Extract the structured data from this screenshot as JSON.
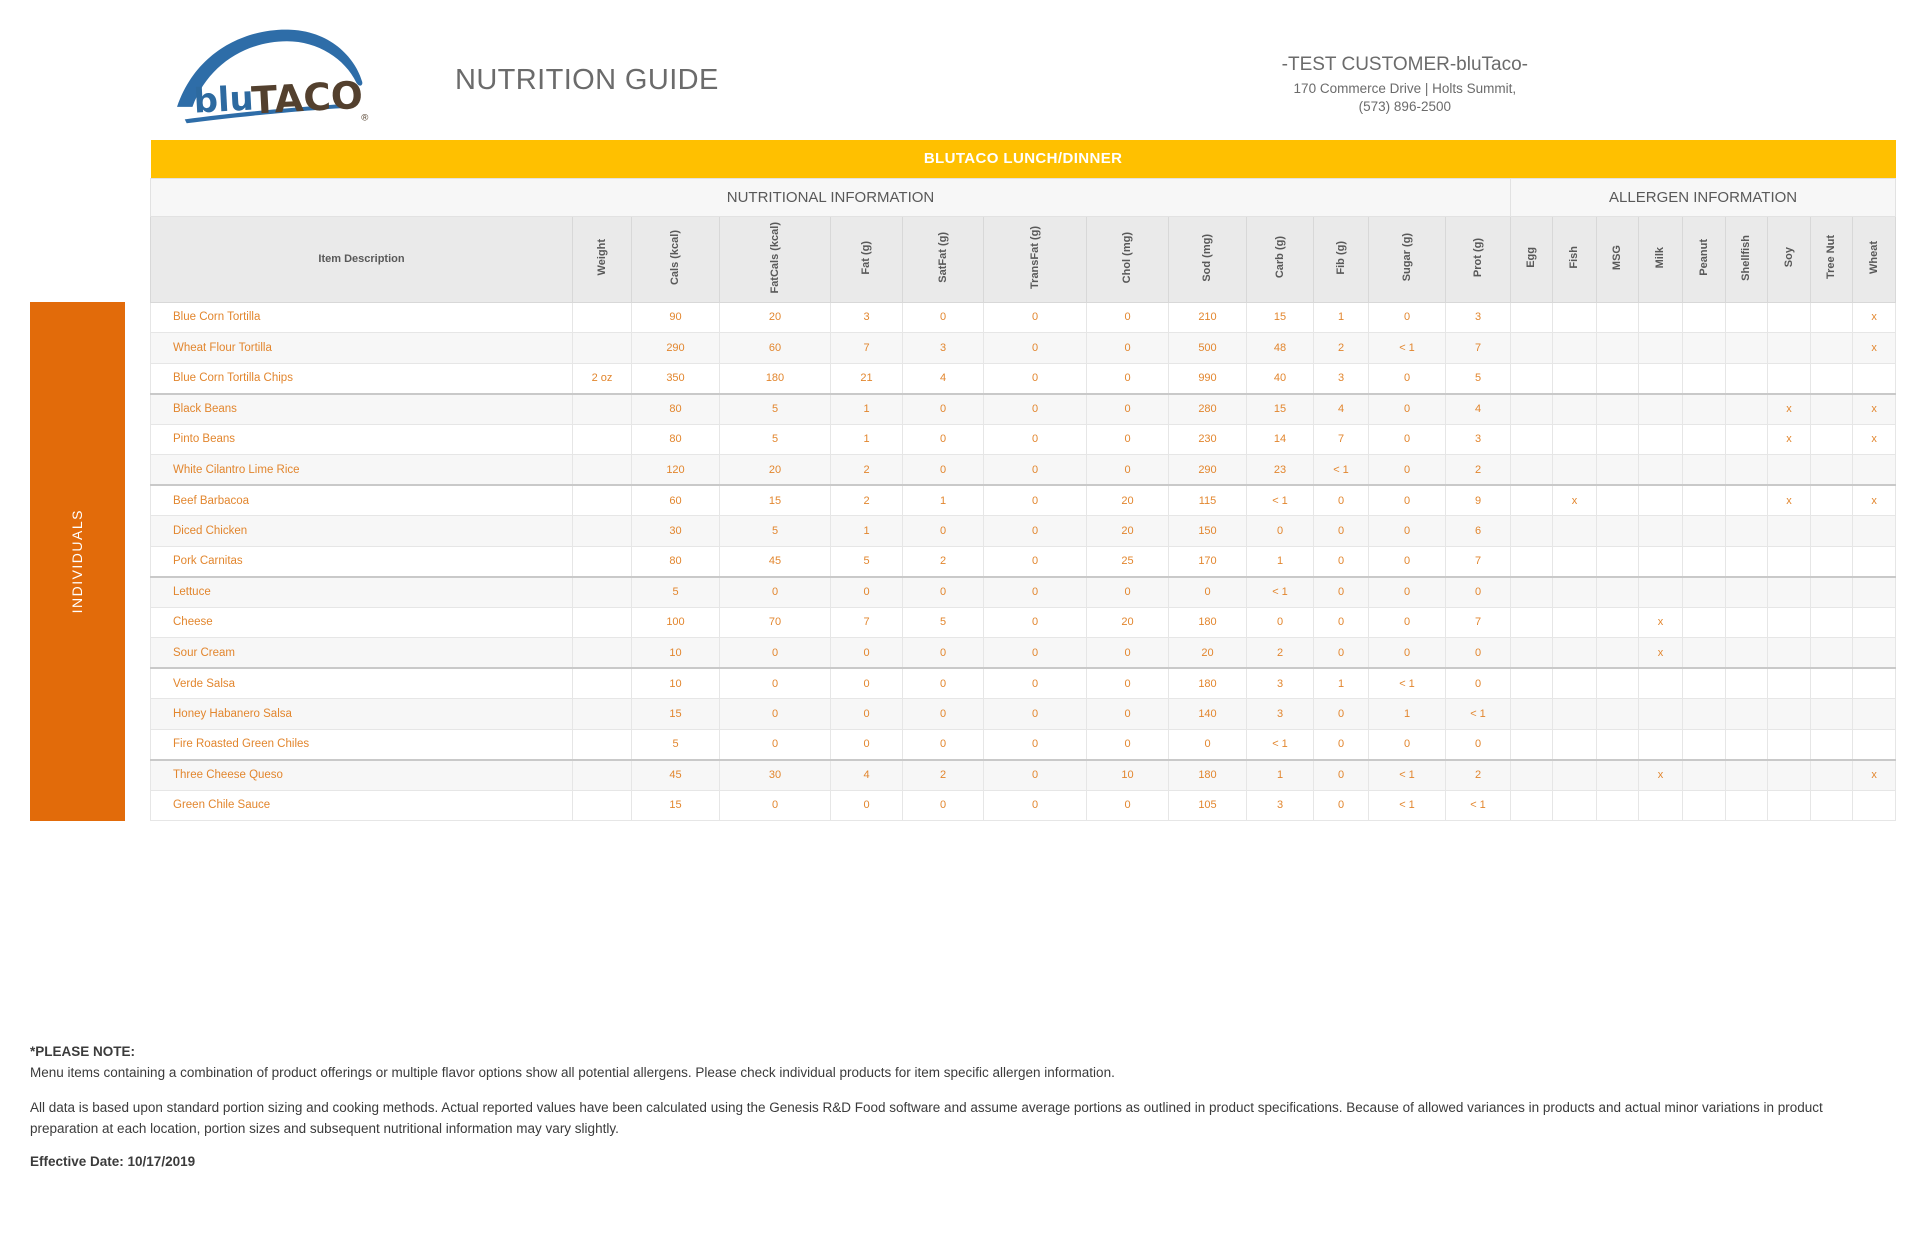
{
  "header": {
    "logo_blu": "blu",
    "logo_taco": "TACO",
    "logo_registered": "®",
    "title": "NUTRITION GUIDE",
    "customer": "-TEST CUSTOMER-bluTaco-",
    "address": "170 Commerce Drive | Holts Summit,",
    "phone": "(573) 896-2500"
  },
  "table": {
    "banner": "BLUTACO LUNCH/DINNER",
    "nutrition_section": "NUTRITIONAL INFORMATION",
    "allergen_section": "ALLERGEN INFORMATION",
    "category_label": "INDIVIDUALS",
    "columns": [
      "Item Description",
      "Weight",
      "Cals (kcal)",
      "FatCals (kcal)",
      "Fat (g)",
      "SatFat (g)",
      "TransFat (g)",
      "Chol (mg)",
      "Sod (mg)",
      "Carb (g)",
      "Fib (g)",
      "Sugar (g)",
      "Prot (g)",
      "Egg",
      "Fish",
      "MSG",
      "Milk",
      "Peanut",
      "Shellfish",
      "Soy",
      "Tree Nut",
      "Wheat"
    ],
    "rows": [
      [
        "Blue Corn Tortilla",
        "",
        "90",
        "20",
        "3",
        "0",
        "0",
        "0",
        "210",
        "15",
        "1",
        "0",
        "3",
        "",
        "",
        "",
        "",
        "",
        "",
        "",
        "",
        "x"
      ],
      [
        "Wheat Flour Tortilla",
        "",
        "290",
        "60",
        "7",
        "3",
        "0",
        "0",
        "500",
        "48",
        "2",
        "< 1",
        "7",
        "",
        "",
        "",
        "",
        "",
        "",
        "",
        "",
        "x"
      ],
      [
        "Blue Corn Tortilla Chips",
        "2 oz",
        "350",
        "180",
        "21",
        "4",
        "0",
        "0",
        "990",
        "40",
        "3",
        "0",
        "5",
        "",
        "",
        "",
        "",
        "",
        "",
        "",
        "",
        ""
      ],
      [
        "Black Beans",
        "",
        "80",
        "5",
        "1",
        "0",
        "0",
        "0",
        "280",
        "15",
        "4",
        "0",
        "4",
        "",
        "",
        "",
        "",
        "",
        "",
        "x",
        "",
        "x"
      ],
      [
        "Pinto Beans",
        "",
        "80",
        "5",
        "1",
        "0",
        "0",
        "0",
        "230",
        "14",
        "7",
        "0",
        "3",
        "",
        "",
        "",
        "",
        "",
        "",
        "x",
        "",
        "x"
      ],
      [
        "White Cilantro Lime Rice",
        "",
        "120",
        "20",
        "2",
        "0",
        "0",
        "0",
        "290",
        "23",
        "< 1",
        "0",
        "2",
        "",
        "",
        "",
        "",
        "",
        "",
        "",
        "",
        ""
      ],
      [
        "Beef Barbacoa",
        "",
        "60",
        "15",
        "2",
        "1",
        "0",
        "20",
        "115",
        "< 1",
        "0",
        "0",
        "9",
        "",
        "x",
        "",
        "",
        "",
        "",
        "x",
        "",
        "x"
      ],
      [
        "Diced Chicken",
        "",
        "30",
        "5",
        "1",
        "0",
        "0",
        "20",
        "150",
        "0",
        "0",
        "0",
        "6",
        "",
        "",
        "",
        "",
        "",
        "",
        "",
        "",
        ""
      ],
      [
        "Pork Carnitas",
        "",
        "80",
        "45",
        "5",
        "2",
        "0",
        "25",
        "170",
        "1",
        "0",
        "0",
        "7",
        "",
        "",
        "",
        "",
        "",
        "",
        "",
        "",
        ""
      ],
      [
        "Lettuce",
        "",
        "5",
        "0",
        "0",
        "0",
        "0",
        "0",
        "0",
        "< 1",
        "0",
        "0",
        "0",
        "",
        "",
        "",
        "",
        "",
        "",
        "",
        "",
        ""
      ],
      [
        "Cheese",
        "",
        "100",
        "70",
        "7",
        "5",
        "0",
        "20",
        "180",
        "0",
        "0",
        "0",
        "7",
        "",
        "",
        "",
        "x",
        "",
        "",
        "",
        "",
        ""
      ],
      [
        "Sour Cream",
        "",
        "10",
        "0",
        "0",
        "0",
        "0",
        "0",
        "20",
        "2",
        "0",
        "0",
        "0",
        "",
        "",
        "",
        "x",
        "",
        "",
        "",
        "",
        ""
      ],
      [
        "Verde Salsa",
        "",
        "10",
        "0",
        "0",
        "0",
        "0",
        "0",
        "180",
        "3",
        "1",
        "< 1",
        "0",
        "",
        "",
        "",
        "",
        "",
        "",
        "",
        "",
        ""
      ],
      [
        "Honey Habanero Salsa",
        "",
        "15",
        "0",
        "0",
        "0",
        "0",
        "0",
        "140",
        "3",
        "0",
        "1",
        "< 1",
        "",
        "",
        "",
        "",
        "",
        "",
        "",
        "",
        ""
      ],
      [
        "Fire Roasted Green Chiles",
        "",
        "5",
        "0",
        "0",
        "0",
        "0",
        "0",
        "0",
        "< 1",
        "0",
        "0",
        "0",
        "",
        "",
        "",
        "",
        "",
        "",
        "",
        "",
        ""
      ],
      [
        "Three Cheese Queso",
        "",
        "45",
        "30",
        "4",
        "2",
        "0",
        "10",
        "180",
        "1",
        "0",
        "< 1",
        "2",
        "",
        "",
        "",
        "x",
        "",
        "",
        "",
        "",
        "x"
      ],
      [
        "Green Chile Sauce",
        "",
        "15",
        "0",
        "0",
        "0",
        "0",
        "0",
        "105",
        "3",
        "0",
        "< 1",
        "< 1",
        "",
        "",
        "",
        "",
        "",
        "",
        "",
        "",
        ""
      ]
    ],
    "group_separators_after": [
      3,
      6,
      9,
      12,
      15
    ]
  },
  "footer": {
    "note_title": "*PLEASE NOTE:",
    "note_allergen": "Menu items containing a combination of product offerings or multiple flavor options show all potential allergens. Please check individual products for item specific allergen information.",
    "note_data": "All data is based upon standard portion sizing and cooking methods. Actual reported values have been calculated using the Genesis R&D Food software and assume average portions as outlined in product specifications. Because of allowed variances in products and actual minor variations in product preparation at each location, portion sizes and subsequent nutritional information may vary slightly.",
    "effective_date": "Effective Date: 10/17/2019"
  },
  "colors": {
    "banner_bg": "#FFC000",
    "category_bg": "#E26B0A",
    "value_text": "#E2862E",
    "header_text": "#595959",
    "logo_blue": "#2E6DA8",
    "logo_brown": "#53402E"
  }
}
